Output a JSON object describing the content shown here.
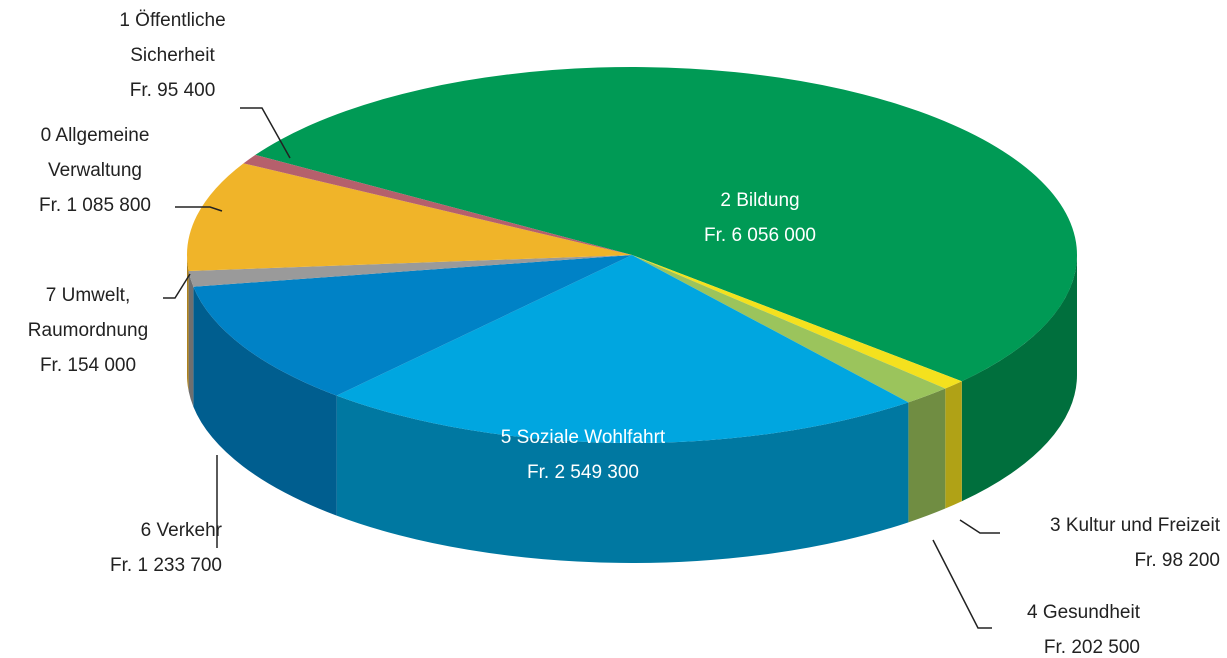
{
  "chart_data": {
    "type": "pie",
    "categories": [
      "2 Bildung",
      "3 Kultur und Freizeit",
      "4 Gesundheit",
      "5 Soziale Wohlfahrt",
      "6 Verkehr",
      "7 Umwelt, Raumordnung",
      "0 Allgemeine Verwaltung",
      "1 Öffentliche Sicherheit"
    ],
    "values": [
      6056000,
      98200,
      202500,
      2549300,
      1233700,
      154000,
      1085800,
      95400
    ],
    "value_labels": [
      "Fr. 6 056 000",
      "Fr. 98 200",
      "Fr. 202 500",
      "Fr. 2 549 300",
      "Fr. 1 233 700",
      "Fr. 154 000",
      "Fr. 1 085 800",
      "Fr. 95 400"
    ],
    "colors": [
      "#009a55",
      "#f4e11e",
      "#9bc45c",
      "#00a6e0",
      "#0082c6",
      "#9a9a9a",
      "#f0b429",
      "#b5606c"
    ]
  }
}
